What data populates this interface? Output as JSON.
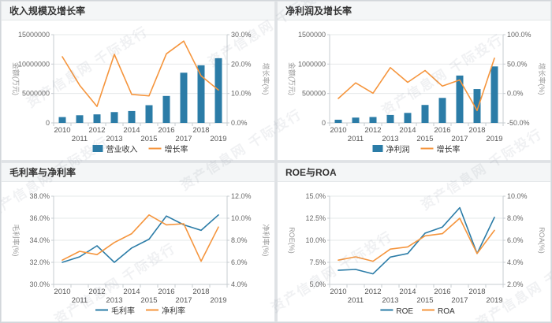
{
  "watermark": {
    "text": "资产信息网 千际投行"
  },
  "palette": {
    "bar_blue": "#2b7ca7",
    "line_blue": "#2b7ca7",
    "line_orange": "#f5953d",
    "grid": "#e5e8ea",
    "axis": "#c7ccd1",
    "tick_text": "#666666",
    "axis_name_text": "#999999"
  },
  "chart_data": [
    {
      "type": "bar+line",
      "title": "收入规模及增长率",
      "categories": [
        "2010",
        "2011",
        "2012",
        "2013",
        "2014",
        "2015",
        "2016",
        "2017",
        "2018",
        "2019"
      ],
      "left_axis": {
        "name": "金额(万元)",
        "min": 0,
        "max": 15000000,
        "ticks": [
          0,
          5000000,
          10000000,
          15000000
        ],
        "tick_labels": [
          "0",
          "5000000",
          "10000000",
          "15000000"
        ]
      },
      "right_axis": {
        "name": "增长率(%)",
        "min": 0,
        "max": 30,
        "ticks": [
          0,
          10,
          20,
          30
        ],
        "tick_labels": [
          "0.0%",
          "10.0%",
          "20.0%",
          "30.0%"
        ]
      },
      "series": [
        {
          "name": "营业收入",
          "type": "bar",
          "axis": "left",
          "color": "#2b7ca7",
          "values": [
            990000,
            1300000,
            1450000,
            1840000,
            2020000,
            3010000,
            4580000,
            8530000,
            9790000,
            11000000
          ]
        },
        {
          "name": "增长率",
          "type": "line",
          "axis": "right",
          "color": "#f5953d",
          "values": [
            22.5,
            12.8,
            5.6,
            23.3,
            9.7,
            9.2,
            23.5,
            27.8,
            16.0,
            11.2
          ]
        }
      ],
      "legend_position": "bottom"
    },
    {
      "type": "bar+line",
      "title": "净利润及增长率",
      "categories": [
        "2010",
        "2011",
        "2012",
        "2013",
        "2014",
        "2015",
        "2016",
        "2017",
        "2018",
        "2019"
      ],
      "left_axis": {
        "name": "金额(万元)",
        "min": 0,
        "max": 1500000,
        "ticks": [
          0,
          500000,
          1000000,
          1500000
        ],
        "tick_labels": [
          "0",
          "500000",
          "1000000",
          "1500000"
        ]
      },
      "right_axis": {
        "name": "增长率(%)",
        "min": -50,
        "max": 100,
        "ticks": [
          -50,
          0,
          50,
          100
        ],
        "tick_labels": [
          "-50.0%",
          "0.0%",
          "50.0%",
          "100.0%"
        ]
      },
      "series": [
        {
          "name": "净利润",
          "type": "bar",
          "axis": "left",
          "color": "#2b7ca7",
          "values": [
            54000,
            90000,
            100000,
            135000,
            170000,
            305000,
            425000,
            805000,
            575000,
            960000
          ]
        },
        {
          "name": "增长率",
          "type": "line",
          "axis": "right",
          "color": "#f5953d",
          "values": [
            -8.5,
            18.0,
            0.5,
            44.0,
            19.0,
            39.0,
            12.5,
            23.0,
            -29.0,
            60.0
          ]
        }
      ],
      "legend_position": "bottom"
    },
    {
      "type": "line",
      "title": "毛利率与净利率",
      "categories": [
        "2010",
        "2011",
        "2012",
        "2013",
        "2014",
        "2015",
        "2016",
        "2017",
        "2018",
        "2019"
      ],
      "left_axis": {
        "name": "毛利率(%)",
        "min": 30,
        "max": 38,
        "ticks": [
          30,
          32,
          34,
          36,
          38
        ],
        "tick_labels": [
          "30.0%",
          "32.0%",
          "34.0%",
          "36.0%",
          "38.0%"
        ]
      },
      "right_axis": {
        "name": "净利率(%)",
        "min": 4,
        "max": 12,
        "ticks": [
          4,
          6,
          8,
          10,
          12
        ],
        "tick_labels": [
          "4.0%",
          "6.0%",
          "8.0%",
          "10.0%",
          "12.0%"
        ]
      },
      "series": [
        {
          "name": "毛利率",
          "type": "line",
          "axis": "left",
          "color": "#2b7ca7",
          "values": [
            32.0,
            32.5,
            33.5,
            32.0,
            33.3,
            34.1,
            36.2,
            35.4,
            34.9,
            36.3
          ]
        },
        {
          "name": "净利率",
          "type": "line",
          "axis": "right",
          "color": "#f5953d",
          "values": [
            6.2,
            7.0,
            6.7,
            7.8,
            8.6,
            10.3,
            9.4,
            9.5,
            6.1,
            9.2
          ]
        }
      ],
      "legend_position": "bottom"
    },
    {
      "type": "line",
      "title": "ROE与ROA",
      "categories": [
        "2010",
        "2011",
        "2012",
        "2013",
        "2014",
        "2015",
        "2016",
        "2017",
        "2018",
        "2019"
      ],
      "left_axis": {
        "name": "ROE(%)",
        "min": 5,
        "max": 15,
        "ticks": [
          5,
          7.5,
          10,
          12.5,
          15
        ],
        "tick_labels": [
          "5.0%",
          "7.5%",
          "10.0%",
          "12.5%",
          "15.0%"
        ]
      },
      "right_axis": {
        "name": "ROA(%)",
        "min": 2,
        "max": 10,
        "ticks": [
          2,
          4,
          6,
          8,
          10
        ],
        "tick_labels": [
          "2.0%",
          "4.0%",
          "6.0%",
          "8.0%",
          "10.0%"
        ]
      },
      "series": [
        {
          "name": "ROE",
          "type": "line",
          "axis": "left",
          "color": "#2b7ca7",
          "values": [
            6.6,
            6.7,
            6.2,
            8.1,
            8.5,
            10.8,
            11.5,
            13.7,
            8.5,
            12.6
          ]
        },
        {
          "name": "ROA",
          "type": "line",
          "axis": "right",
          "color": "#f5953d",
          "values": [
            4.2,
            4.5,
            4.1,
            5.2,
            5.4,
            6.4,
            6.6,
            8.0,
            4.8,
            6.9
          ]
        }
      ],
      "legend_position": "bottom"
    }
  ]
}
